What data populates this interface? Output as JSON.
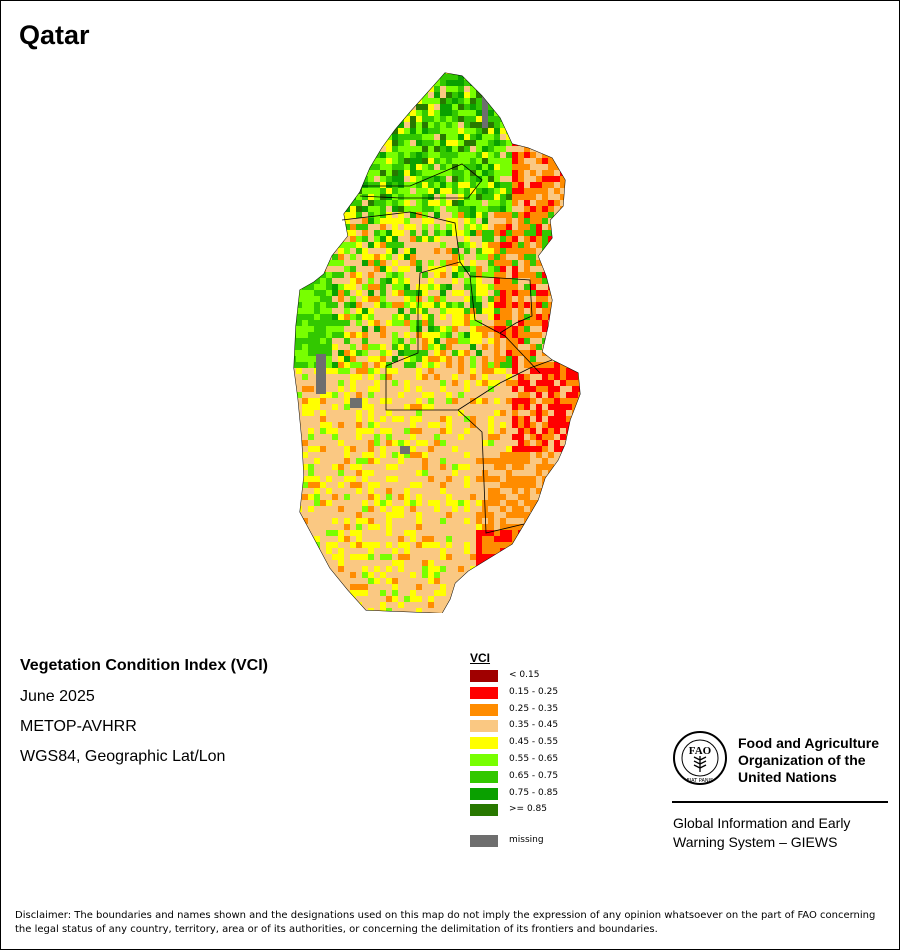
{
  "map_title": "Qatar",
  "info": {
    "index_name": "Vegetation Condition Index (VCI)",
    "period": "June 2025",
    "sensor": "METOP-AVHRR",
    "projection": "WGS84, Geographic Lat/Lon"
  },
  "legend": {
    "title": "VCI",
    "classes": [
      {
        "label": "< 0.15",
        "color": "#a00000"
      },
      {
        "label": "0.15 - 0.25",
        "color": "#ff0000"
      },
      {
        "label": "0.25 - 0.35",
        "color": "#ff8c00"
      },
      {
        "label": "0.35 - 0.45",
        "color": "#fac882"
      },
      {
        "label": "0.45 - 0.55",
        "color": "#ffff00"
      },
      {
        "label": "0.55 - 0.65",
        "color": "#78ff00"
      },
      {
        "label": "0.65 - 0.75",
        "color": "#32c800"
      },
      {
        "label": "0.75 - 0.85",
        "color": "#0aa000"
      },
      {
        "label": ">= 0.85",
        "color": "#287800"
      }
    ],
    "missing": {
      "label": "missing",
      "color": "#6e6e6e"
    }
  },
  "fao": {
    "org_name": "Food and Agriculture Organization of the United Nations",
    "emblem_text_top": "FAO",
    "emblem_motto": "FIAT PANIS",
    "system_name": "Global Information and Early Warning System – GIEWS"
  },
  "disclaimer": "Disclaimer: The boundaries and names shown and the designations used on this map do not imply the expression of any opinion whatsoever on the part of FAO concerning the legal status of any country, territory, area or of its authorities, or concerning the delimitation of its frontiers and boundaries."
}
